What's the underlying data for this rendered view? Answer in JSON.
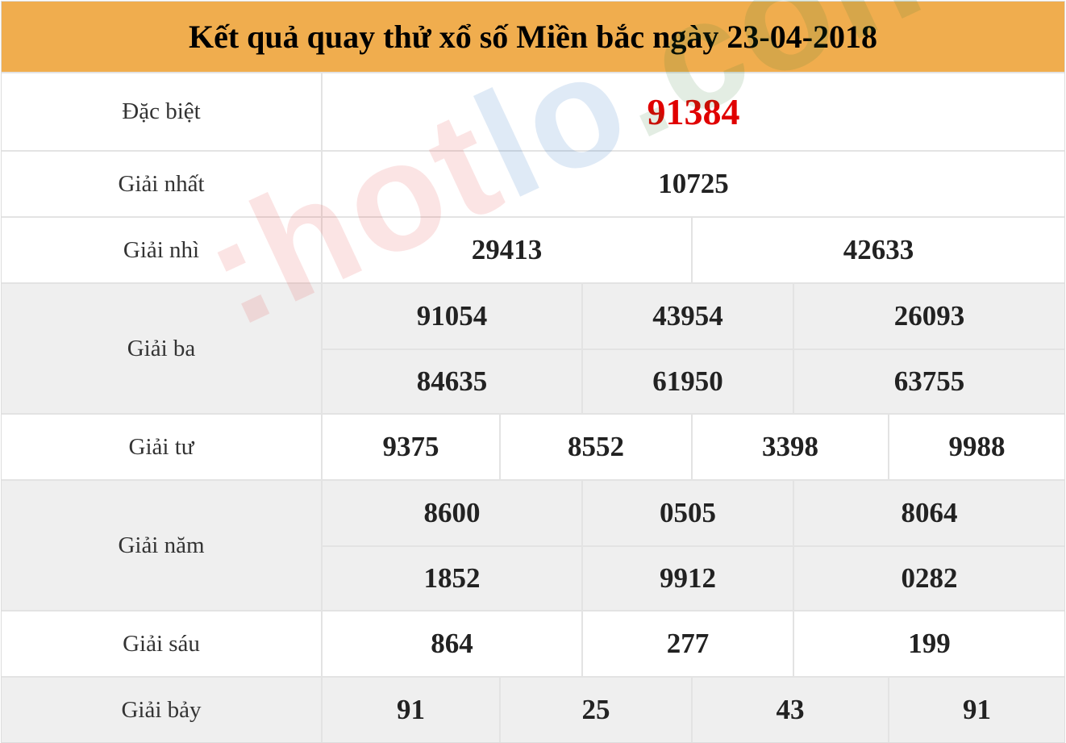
{
  "title": "Kết quả quay thử xổ số Miền bắc ngày 23-04-2018",
  "watermark": "hotlo.com",
  "colors": {
    "header": "#f0ad4e",
    "special": "#e00000"
  },
  "prizes": {
    "dac_biet": {
      "label": "Đặc biệt",
      "numbers": [
        "91384"
      ]
    },
    "nhat": {
      "label": "Giải nhất",
      "numbers": [
        "10725"
      ]
    },
    "nhi": {
      "label": "Giải nhì",
      "numbers": [
        "29413",
        "42633"
      ]
    },
    "ba": {
      "label": "Giải ba",
      "numbers": [
        "91054",
        "43954",
        "26093",
        "84635",
        "61950",
        "63755"
      ]
    },
    "tu": {
      "label": "Giải tư",
      "numbers": [
        "9375",
        "8552",
        "3398",
        "9988"
      ]
    },
    "nam": {
      "label": "Giải năm",
      "numbers": [
        "8600",
        "0505",
        "8064",
        "1852",
        "9912",
        "0282"
      ]
    },
    "sau": {
      "label": "Giải sáu",
      "numbers": [
        "864",
        "277",
        "199"
      ]
    },
    "bay": {
      "label": "Giải bảy",
      "numbers": [
        "91",
        "25",
        "43",
        "91"
      ]
    }
  }
}
